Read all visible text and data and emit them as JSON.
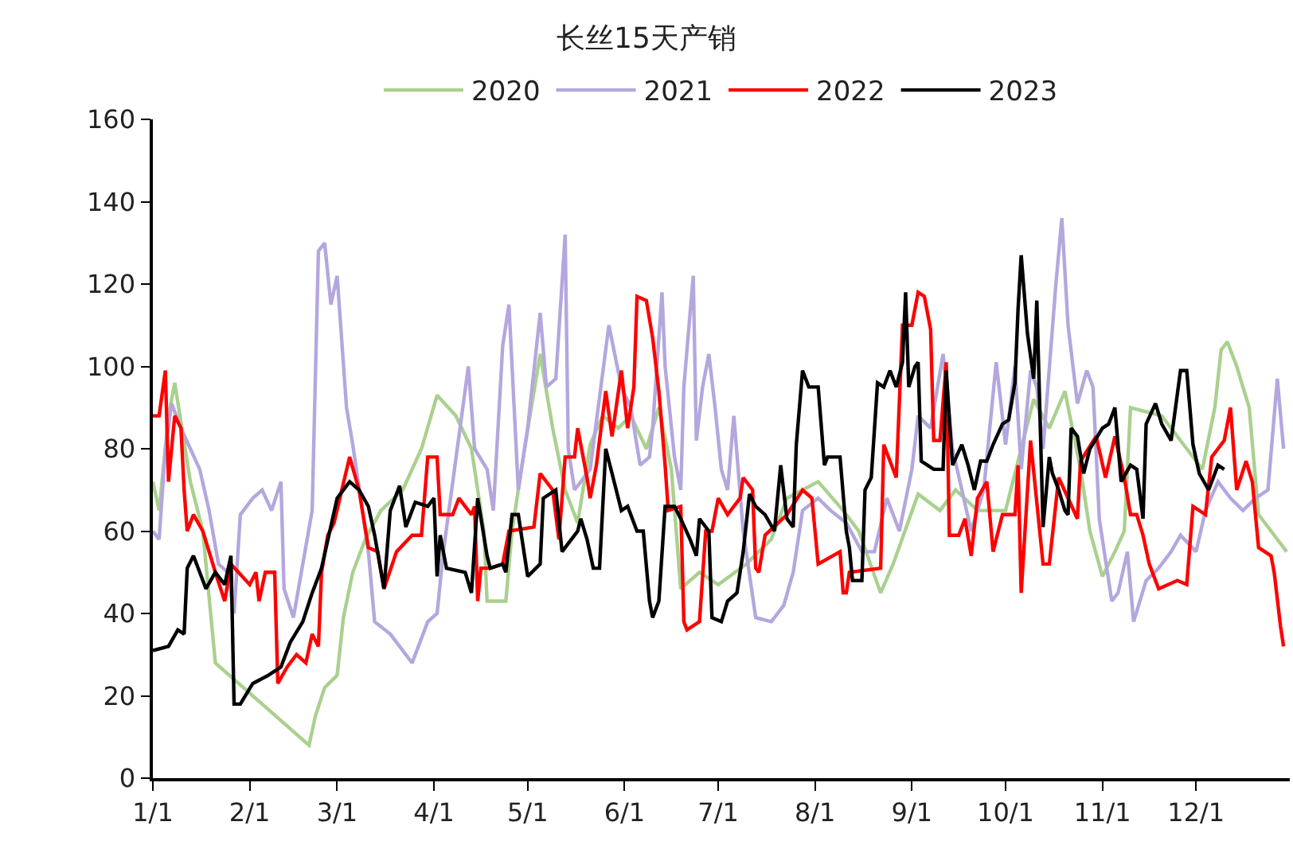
{
  "chart_data": {
    "type": "line",
    "title": "长丝15天产销",
    "series": [
      {
        "name": "2020",
        "color": "#a9d18e",
        "x": [
          "--01-01",
          "--01-03",
          "--01-06",
          "--01-08",
          "--01-13",
          "--01-17",
          "--01-21",
          "--02-20",
          "--02-22",
          "--02-25",
          "--03-01",
          "--03-03",
          "--03-06",
          "--03-10",
          "--03-15",
          "--03-22",
          "--03-28",
          "--04-02",
          "--04-08",
          "--04-13",
          "--04-15",
          "--04-17",
          "--04-18",
          "--04-24",
          "--04-26",
          "--04-30",
          "--05-05",
          "--05-09",
          "--05-13",
          "--05-17",
          "--05-21",
          "--05-25",
          "--05-30",
          "--06-03",
          "--06-08",
          "--06-12",
          "--06-16",
          "--06-19",
          "--06-25",
          "--07-01",
          "--07-10",
          "--07-18",
          "--07-23",
          "--08-02",
          "--08-10",
          "--08-15",
          "--08-22",
          "--08-26",
          "--09-03",
          "--09-10",
          "--09-15",
          "--09-22",
          "--10-01",
          "--10-06",
          "--10-10",
          "--10-15",
          "--10-20",
          "--10-25",
          "--10-28",
          "--11-01",
          "--11-05",
          "--11-08",
          "--11-10",
          "--11-20",
          "--11-28",
          "--12-03",
          "--12-07",
          "--12-09",
          "--12-11",
          "--12-14",
          "--12-18",
          "--12-21",
          "--12-25",
          "--12-30"
        ],
        "values": [
          72,
          65,
          88,
          96,
          72,
          60,
          28,
          8,
          15,
          22,
          25,
          39,
          50,
          58,
          65,
          70,
          80,
          93,
          88,
          80,
          70,
          60,
          43,
          43,
          60,
          80,
          103,
          85,
          70,
          62,
          81,
          88,
          85,
          88,
          80,
          90,
          75,
          46,
          50,
          47,
          52,
          58,
          68,
          72,
          65,
          60,
          45,
          52,
          69,
          65,
          70,
          65,
          65,
          80,
          92,
          85,
          94,
          75,
          60,
          49,
          55,
          60,
          90,
          88,
          80,
          75,
          90,
          104,
          106,
          100,
          90,
          64,
          60,
          55
        ]
      },
      {
        "name": "2021",
        "color": "#b4a7de",
        "x": [
          "--01-01",
          "--01-03",
          "--01-05",
          "--01-07",
          "--01-10",
          "--01-13",
          "--01-16",
          "--01-19",
          "--01-22",
          "--01-25",
          "--01-27",
          "--01-29",
          "--02-02",
          "--02-05",
          "--02-08",
          "--02-11",
          "--02-12",
          "--02-15",
          "--02-21",
          "--02-23",
          "--02-25",
          "--02-27",
          "--03-01",
          "--03-04",
          "--03-06",
          "--03-11",
          "--03-13",
          "--03-18",
          "--03-25",
          "--03-30",
          "--04-02",
          "--04-04",
          "--04-12",
          "--04-14",
          "--04-18",
          "--04-20",
          "--04-23",
          "--04-25",
          "--04-28",
          "--05-01",
          "--05-05",
          "--05-07",
          "--05-10",
          "--05-13",
          "--05-14",
          "--05-16",
          "--05-21",
          "--05-27",
          "--05-31",
          "--06-03",
          "--06-06",
          "--06-09",
          "--06-10",
          "--06-13",
          "--06-14",
          "--06-17",
          "--06-19",
          "--06-20",
          "--06-23",
          "--06-24",
          "--06-26",
          "--06-28",
          "--06-30",
          "--07-02",
          "--07-04",
          "--07-06",
          "--07-09",
          "--07-13",
          "--07-18",
          "--07-22",
          "--07-25",
          "--07-28",
          "--08-02",
          "--08-06",
          "--08-11",
          "--08-16",
          "--08-20",
          "--08-24",
          "--08-28",
          "--09-01",
          "--09-03",
          "--09-07",
          "--09-11",
          "--09-14",
          "--09-17",
          "--09-20",
          "--09-24",
          "--09-28",
          "--10-01",
          "--10-04",
          "--10-06",
          "--10-09",
          "--10-11",
          "--10-13",
          "--10-17",
          "--10-19",
          "--10-21",
          "--10-24",
          "--10-27",
          "--10-29",
          "--10-31",
          "--11-04",
          "--11-06",
          "--11-09",
          "--11-11",
          "--11-15",
          "--11-19",
          "--11-23",
          "--11-26",
          "--12-01",
          "--12-04",
          "--12-08",
          "--12-12",
          "--12-16",
          "--12-20",
          "--12-24",
          "--12-27",
          "--12-29"
        ],
        "values": [
          60,
          58,
          80,
          91,
          85,
          80,
          75,
          65,
          52,
          50,
          40,
          64,
          68,
          70,
          65,
          72,
          46,
          39,
          65,
          128,
          130,
          115,
          122,
          90,
          81,
          55,
          38,
          35,
          28,
          38,
          40,
          55,
          100,
          80,
          75,
          65,
          105,
          115,
          70,
          85,
          113,
          95,
          97,
          132,
          80,
          70,
          75,
          110,
          95,
          90,
          76,
          78,
          85,
          118,
          100,
          78,
          70,
          95,
          122,
          82,
          95,
          103,
          90,
          75,
          70,
          88,
          60,
          39,
          38,
          42,
          50,
          65,
          68,
          65,
          62,
          55,
          55,
          68,
          60,
          75,
          88,
          85,
          103,
          80,
          70,
          60,
          70,
          101,
          81,
          100,
          75,
          99,
          95,
          80,
          119,
          136,
          110,
          91,
          99,
          95,
          63,
          43,
          45,
          55,
          38,
          48,
          51,
          55,
          59,
          55,
          65,
          72,
          68,
          65,
          68,
          70,
          97,
          80
        ]
      },
      {
        "name": "2022",
        "color": "#ff0000",
        "x": [
          "--01-01",
          "--01-03",
          "--01-05",
          "--01-06",
          "--01-08",
          "--01-10",
          "--01-11",
          "--01-12",
          "--01-14",
          "--01-17",
          "--01-21",
          "--01-24",
          "--01-26",
          "--02-01",
          "--02-03",
          "--02-04",
          "--02-06",
          "--02-09",
          "--02-10",
          "--02-13",
          "--02-16",
          "--02-19",
          "--02-21",
          "--02-23",
          "--02-24",
          "--02-26",
          "--02-28",
          "--03-05",
          "--03-08",
          "--03-11",
          "--03-14",
          "--03-16",
          "--03-20",
          "--03-25",
          "--03-28",
          "--03-30",
          "--04-02",
          "--04-03",
          "--04-07",
          "--04-09",
          "--04-13",
          "--04-14",
          "--04-15",
          "--04-16",
          "--04-19",
          "--04-23",
          "--04-25",
          "--05-03",
          "--05-05",
          "--05-09",
          "--05-11",
          "--05-13",
          "--05-16",
          "--05-17",
          "--05-20",
          "--05-21",
          "--05-23",
          "--05-26",
          "--05-28",
          "--05-31",
          "--06-02",
          "--06-04",
          "--06-05",
          "--06-08",
          "--06-10",
          "--06-12",
          "--06-14",
          "--06-15",
          "--06-19",
          "--06-20",
          "--06-21",
          "--06-25",
          "--06-27",
          "--06-29",
          "--07-01",
          "--07-04",
          "--07-08",
          "--07-09",
          "--07-12",
          "--07-13",
          "--07-14",
          "--07-16",
          "--07-23",
          "--07-28",
          "--07-31",
          "--08-02",
          "--08-09",
          "--08-10",
          "--08-11",
          "--08-12",
          "--08-22",
          "--08-23",
          "--08-27",
          "--08-29",
          "--09-01",
          "--09-03",
          "--09-05",
          "--09-07",
          "--09-08",
          "--09-10",
          "--09-12",
          "--09-13",
          "--09-16",
          "--09-18",
          "--09-20",
          "--09-22",
          "--09-25",
          "--09-27",
          "--09-30",
          "--10-04",
          "--10-05",
          "--10-06",
          "--10-09",
          "--10-13",
          "--10-15",
          "--10-18",
          "--10-24",
          "--10-25",
          "--10-30",
          "--11-02",
          "--11-05",
          "--11-08",
          "--11-10",
          "--11-12",
          "--11-14",
          "--11-16",
          "--11-19",
          "--11-25",
          "--11-28",
          "--11-30",
          "--12-04",
          "--12-06",
          "--12-10",
          "--12-12",
          "--12-14",
          "--12-17",
          "--12-19",
          "--12-21",
          "--12-25",
          "--12-26",
          "--12-28",
          "--12-29"
        ],
        "values": [
          88,
          88,
          99,
          72,
          88,
          85,
          70,
          60,
          64,
          60,
          50,
          43,
          52,
          47,
          50,
          43,
          50,
          50,
          23,
          27,
          30,
          28,
          35,
          32,
          50,
          59,
          62,
          78,
          70,
          56,
          55,
          46,
          55,
          59,
          59,
          78,
          78,
          64,
          64,
          68,
          64,
          66,
          43,
          51,
          51,
          52,
          60,
          61,
          74,
          70,
          58,
          78,
          78,
          85,
          73,
          68,
          76,
          94,
          83,
          99,
          85,
          95,
          117,
          116,
          107,
          94,
          76,
          65,
          66,
          38,
          36,
          38,
          60,
          60,
          68,
          64,
          68,
          73,
          70,
          51,
          50,
          59,
          64,
          70,
          68,
          52,
          55,
          45,
          45,
          50,
          51,
          81,
          73,
          110,
          110,
          118,
          117,
          109,
          82,
          82,
          101,
          59,
          59,
          63,
          54,
          68,
          72,
          55,
          64,
          64,
          76,
          45,
          82,
          52,
          52,
          73,
          63,
          77,
          83,
          73,
          83,
          73,
          64,
          64,
          59,
          52,
          46,
          48,
          47,
          66,
          64,
          78,
          82,
          90,
          70,
          77,
          72,
          56,
          54,
          50,
          37,
          32
        ]
      },
      {
        "name": "2023",
        "color": "#000000",
        "x": [
          "--01-01",
          "--01-06",
          "--01-09",
          "--01-11",
          "--01-12",
          "--01-14",
          "--01-18",
          "--01-21",
          "--01-24",
          "--01-26",
          "--01-27",
          "--01-29",
          "--02-02",
          "--02-07",
          "--02-11",
          "--02-14",
          "--02-18",
          "--02-21",
          "--02-24",
          "--03-01",
          "--03-05",
          "--03-08",
          "--03-11",
          "--03-13",
          "--03-16",
          "--03-18",
          "--03-21",
          "--03-23",
          "--03-26",
          "--03-30",
          "--04-01",
          "--04-02",
          "--04-03",
          "--04-05",
          "--04-11",
          "--04-13",
          "--04-15",
          "--04-18",
          "--04-19",
          "--04-23",
          "--04-24",
          "--04-26",
          "--04-28",
          "--05-01",
          "--05-05",
          "--05-06",
          "--05-10",
          "--05-12",
          "--05-15",
          "--05-17",
          "--05-18",
          "--05-20",
          "--05-22",
          "--05-24",
          "--05-26",
          "--05-28",
          "--05-31",
          "--06-02",
          "--06-05",
          "--06-07",
          "--06-09",
          "--06-10",
          "--06-12",
          "--06-14",
          "--06-17",
          "--06-19",
          "--06-22",
          "--06-24",
          "--06-25",
          "--06-28",
          "--06-29",
          "--07-02",
          "--07-04",
          "--07-07",
          "--07-09",
          "--07-11",
          "--07-13",
          "--07-16",
          "--07-19",
          "--07-21",
          "--07-23",
          "--07-25",
          "--07-26",
          "--07-28",
          "--07-30",
          "--08-02",
          "--08-04",
          "--08-05",
          "--08-07",
          "--08-09",
          "--08-11",
          "--08-12",
          "--08-13",
          "--08-16",
          "--08-17",
          "--08-19",
          "--08-21",
          "--08-23",
          "--08-25",
          "--08-27",
          "--08-29",
          "--08-30",
          "--08-31",
          "--09-02",
          "--09-03",
          "--09-04",
          "--09-06",
          "--09-08",
          "--09-11",
          "--09-12",
          "--09-14",
          "--09-17",
          "--09-19",
          "--09-21",
          "--09-23",
          "--09-25",
          "--09-27",
          "--09-30",
          "--10-02",
          "--10-04",
          "--10-05",
          "--10-06",
          "--10-08",
          "--10-10",
          "--10-11",
          "--10-13",
          "--10-15",
          "--10-16",
          "--10-18",
          "--10-20",
          "--10-21",
          "--10-22",
          "--10-24",
          "--10-26",
          "--10-28",
          "--11-01",
          "--11-03",
          "--11-05",
          "--11-07",
          "--11-10",
          "--11-12",
          "--11-14",
          "--11-15",
          "--11-18",
          "--11-20",
          "--11-23",
          "--11-26",
          "--11-28",
          "--11-30",
          "--12-02",
          "--12-05",
          "--12-08",
          "--12-10"
        ],
        "values": [
          31,
          32,
          36,
          35,
          51,
          54,
          46,
          50,
          47,
          54,
          18,
          18,
          23,
          25,
          27,
          33,
          38,
          45,
          51,
          68,
          72,
          70,
          66,
          59,
          46,
          65,
          71,
          61,
          67,
          66,
          68,
          49,
          59,
          51,
          50,
          45,
          68,
          54,
          51,
          52,
          50,
          64,
          64,
          49,
          52,
          68,
          70,
          55,
          58,
          60,
          63,
          58,
          51,
          51,
          80,
          74,
          65,
          66,
          60,
          60,
          43,
          39,
          43,
          66,
          66,
          63,
          58,
          54,
          63,
          60,
          39,
          38,
          43,
          45,
          55,
          69,
          66,
          64,
          60,
          76,
          63,
          61,
          81,
          99,
          95,
          95,
          76,
          78,
          78,
          78,
          60,
          56,
          48,
          48,
          70,
          73,
          96,
          95,
          99,
          95,
          101,
          118,
          95,
          100,
          101,
          77,
          76,
          75,
          75,
          99,
          76,
          81,
          76,
          70,
          77,
          77,
          81,
          86,
          87,
          96,
          114,
          127,
          108,
          97,
          116,
          61,
          78,
          74,
          70,
          65,
          64,
          85,
          83,
          74,
          80,
          85,
          86,
          90,
          72,
          76,
          75,
          63,
          86,
          91,
          86,
          82,
          99,
          99,
          81,
          74,
          70,
          76,
          75
        ]
      }
    ],
    "xlim": [
      "--01-01",
      "--12-31"
    ],
    "xticks": [
      {
        "value": "--01-01",
        "label": "1/1"
      },
      {
        "value": "--02-01",
        "label": "2/1"
      },
      {
        "value": "--03-01",
        "label": "3/1"
      },
      {
        "value": "--04-01",
        "label": "4/1"
      },
      {
        "value": "--05-01",
        "label": "5/1"
      },
      {
        "value": "--06-01",
        "label": "6/1"
      },
      {
        "value": "--07-01",
        "label": "7/1"
      },
      {
        "value": "--08-01",
        "label": "8/1"
      },
      {
        "value": "--09-01",
        "label": "9/1"
      },
      {
        "value": "--10-01",
        "label": "10/1"
      },
      {
        "value": "--11-01",
        "label": "11/1"
      },
      {
        "value": "--12-01",
        "label": "12/1"
      }
    ],
    "ylim": [
      0,
      160
    ],
    "yticks": [
      0,
      20,
      40,
      60,
      80,
      100,
      120,
      140,
      160
    ],
    "legend": "top",
    "marker": "none",
    "line_style": "solid"
  }
}
